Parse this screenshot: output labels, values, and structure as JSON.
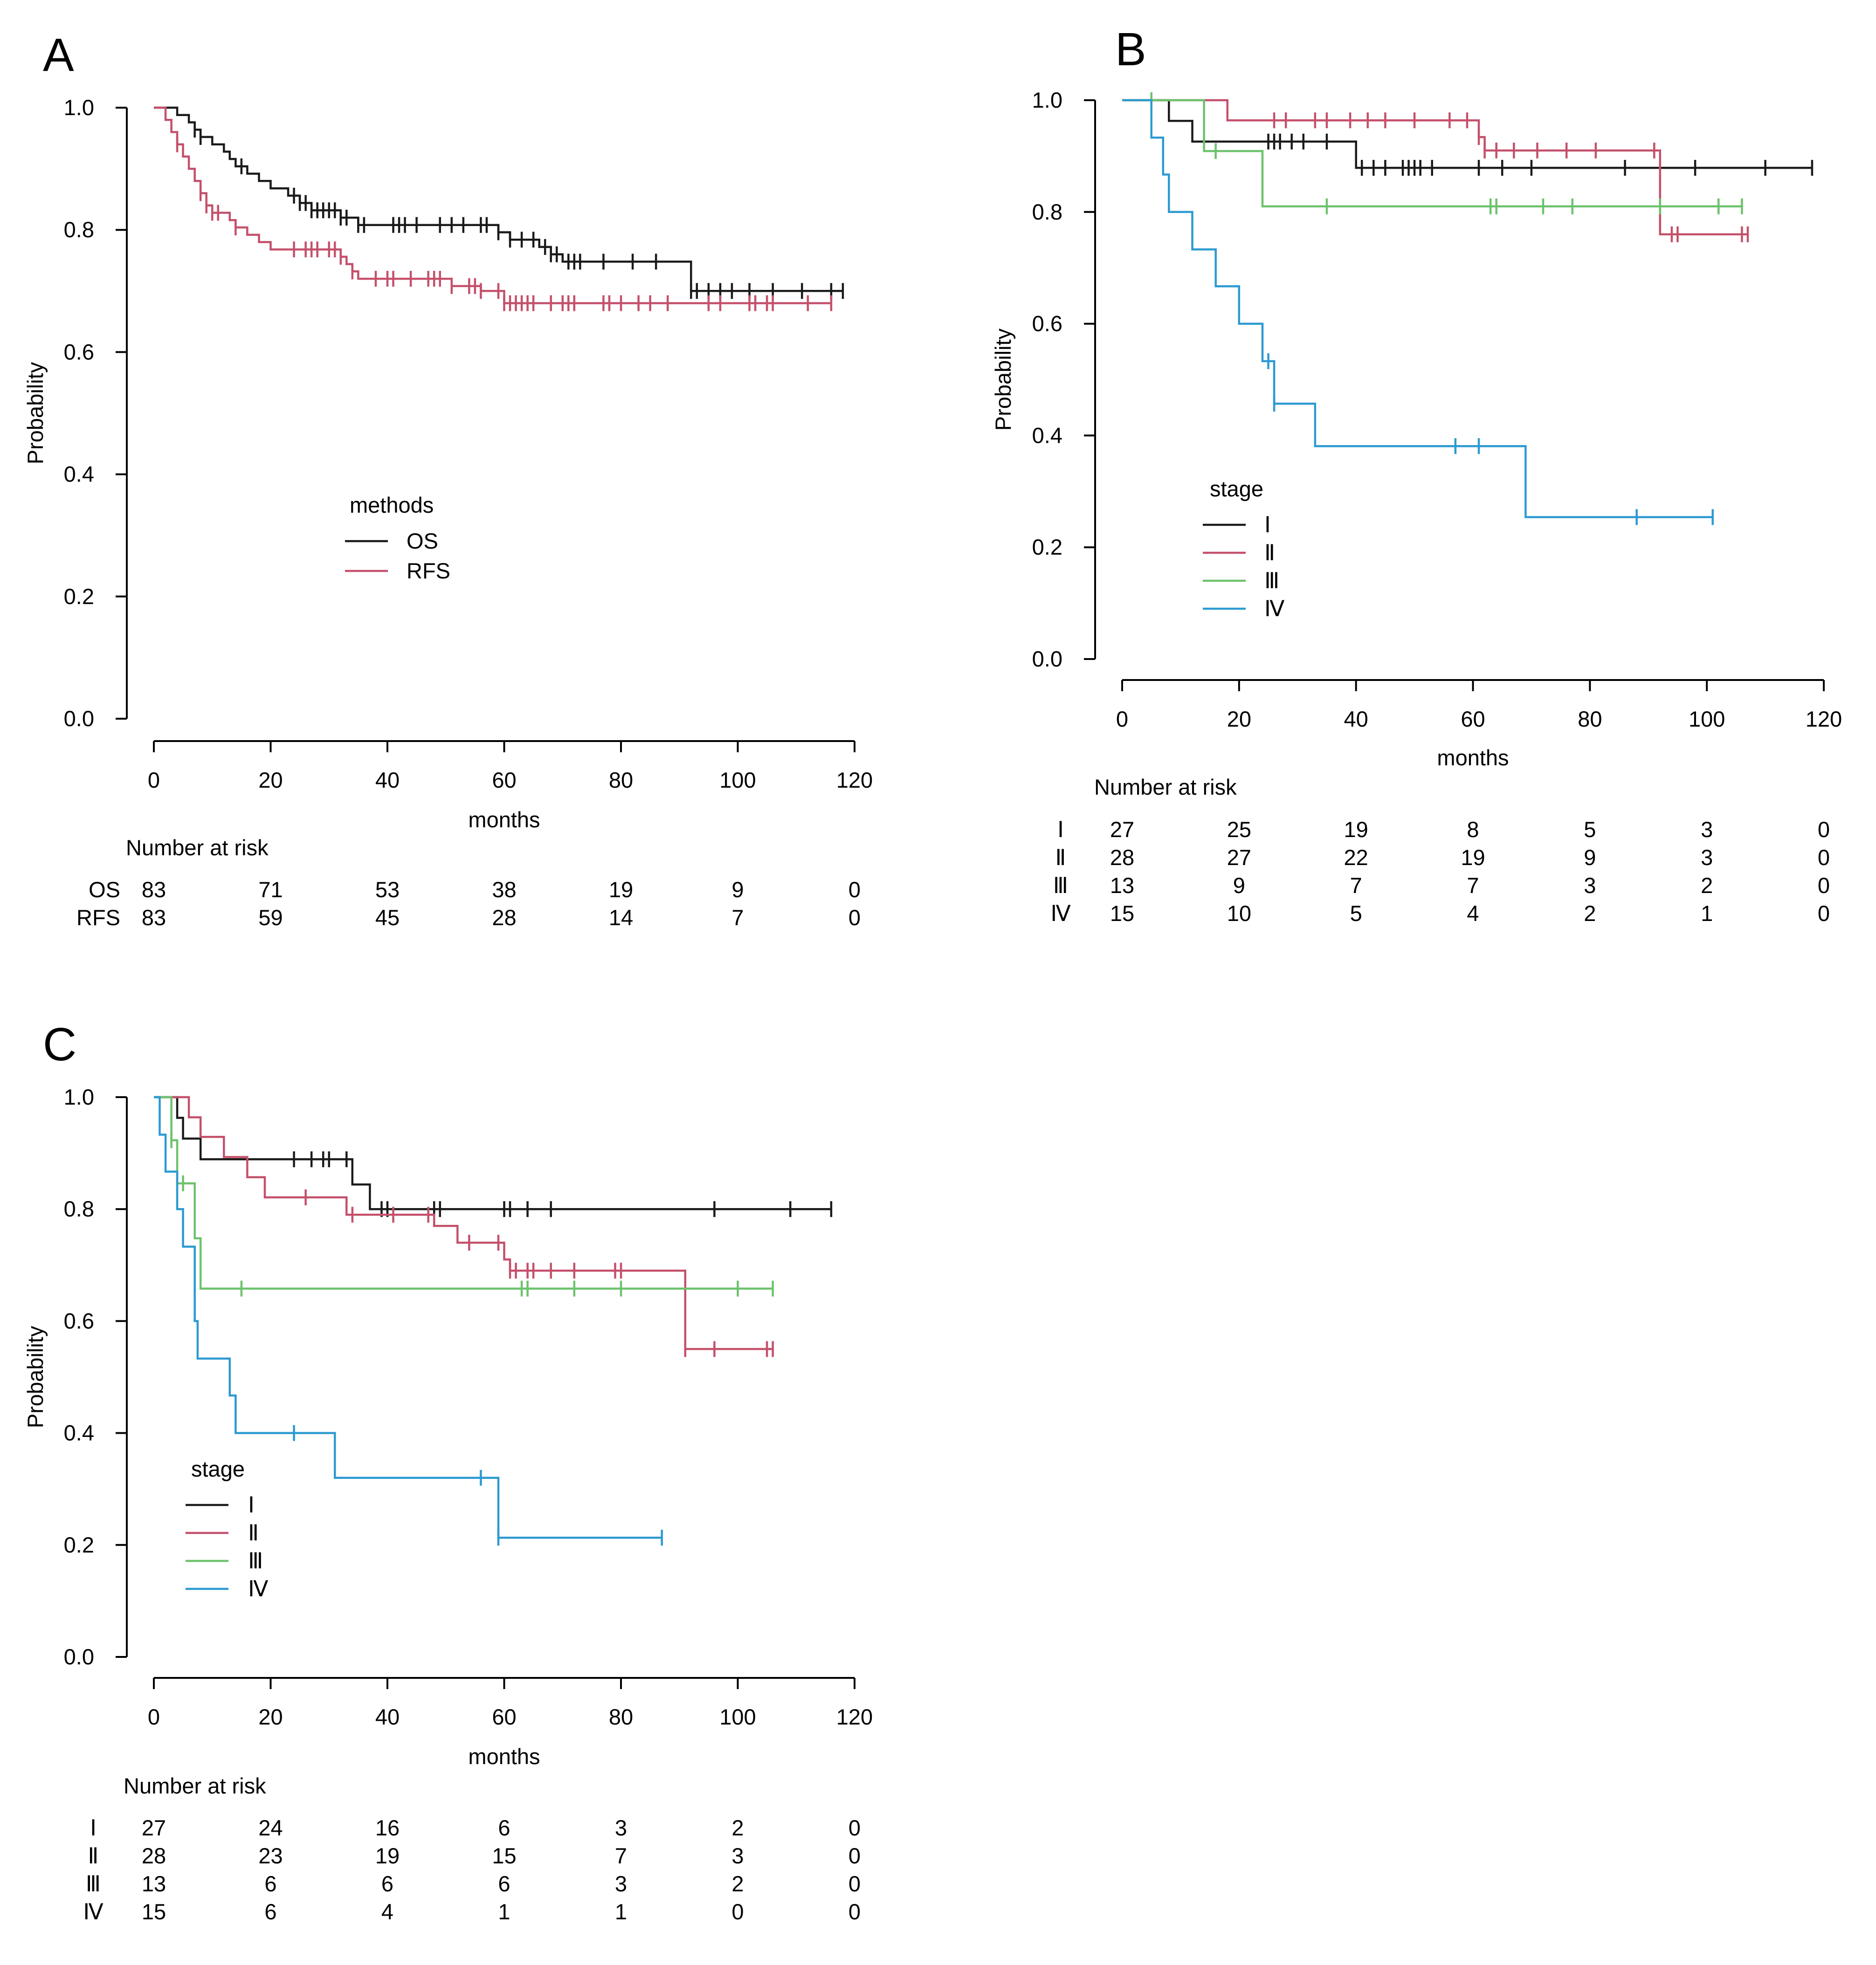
{
  "colors": {
    "black": "#1a1a1a",
    "red": "#c4506b",
    "green": "#6cc26c",
    "blue": "#2c9ad1"
  },
  "chart_data": [
    {
      "type": "line",
      "subtype": "kaplan-meier",
      "panel_label": "A",
      "xlabel": "months",
      "ylabel": "Probability",
      "xlim": [
        0,
        120
      ],
      "ylim": [
        0,
        1
      ],
      "xticks": [
        "0",
        "20",
        "40",
        "60",
        "80",
        "100",
        "120"
      ],
      "yticks": [
        "0.0",
        "0.2",
        "0.4",
        "0.6",
        "0.8",
        "1.0"
      ],
      "legend": {
        "title": "methods",
        "placement": "center"
      },
      "risk_table": {
        "title": "Number at risk",
        "rows": [
          {
            "label": "OS",
            "values": [
              "83",
              "71",
              "53",
              "38",
              "19",
              "9",
              "0"
            ]
          },
          {
            "label": "RFS",
            "values": [
              "83",
              "59",
              "45",
              "28",
              "14",
              "7",
              "0"
            ]
          }
        ]
      },
      "series": [
        {
          "name": "OS",
          "color": "#1a1a1a",
          "steps": [
            [
              0,
              1.0
            ],
            [
              4,
              0.988
            ],
            [
              6,
              0.976
            ],
            [
              7,
              0.964
            ],
            [
              8,
              0.952
            ],
            [
              10,
              0.94
            ],
            [
              12,
              0.928
            ],
            [
              13,
              0.916
            ],
            [
              14,
              0.904
            ],
            [
              16,
              0.892
            ],
            [
              18,
              0.88
            ],
            [
              20,
              0.868
            ],
            [
              23,
              0.856
            ],
            [
              25,
              0.844
            ],
            [
              27,
              0.832
            ],
            [
              32,
              0.82
            ],
            [
              35,
              0.808
            ],
            [
              40,
              0.808
            ],
            [
              59,
              0.796
            ],
            [
              61,
              0.784
            ],
            [
              66,
              0.772
            ],
            [
              68,
              0.76
            ],
            [
              70,
              0.748
            ],
            [
              92,
              0.7
            ]
          ],
          "censor_x": [
            7,
            8,
            15,
            24,
            25,
            26,
            27,
            28,
            29,
            30,
            31,
            32,
            33,
            35,
            36,
            41,
            42,
            43,
            45,
            49,
            51,
            53,
            56,
            57,
            59,
            61,
            63,
            65,
            67,
            68,
            69,
            71,
            72,
            73,
            77,
            82,
            86,
            92,
            93,
            95,
            97,
            99,
            102,
            106,
            111,
            116,
            118
          ]
        },
        {
          "name": "RFS",
          "color": "#c4506b",
          "steps": [
            [
              0,
              1.0
            ],
            [
              2,
              0.98
            ],
            [
              3,
              0.96
            ],
            [
              4,
              0.94
            ],
            [
              5,
              0.92
            ],
            [
              6,
              0.9
            ],
            [
              7,
              0.88
            ],
            [
              8,
              0.86
            ],
            [
              9,
              0.84
            ],
            [
              10,
              0.828
            ],
            [
              13,
              0.816
            ],
            [
              14,
              0.804
            ],
            [
              16,
              0.792
            ],
            [
              18,
              0.78
            ],
            [
              20,
              0.768
            ],
            [
              32,
              0.756
            ],
            [
              33,
              0.744
            ],
            [
              34,
              0.732
            ],
            [
              35,
              0.72
            ],
            [
              46,
              0.72
            ],
            [
              51,
              0.708
            ],
            [
              56,
              0.7
            ],
            [
              60,
              0.68
            ]
          ],
          "censor_x": [
            4,
            8,
            9,
            10,
            11,
            14,
            24,
            26,
            27,
            28,
            30,
            31,
            32,
            34,
            38,
            40,
            41,
            44,
            47,
            48,
            49,
            51,
            54,
            55,
            56,
            59,
            60,
            61,
            62,
            63,
            64,
            65,
            68,
            70,
            71,
            72,
            77,
            78,
            80,
            83,
            85,
            88,
            95,
            97,
            102,
            103,
            105,
            106,
            112,
            116
          ]
        }
      ]
    },
    {
      "type": "line",
      "subtype": "kaplan-meier",
      "panel_label": "B",
      "xlabel": "months",
      "ylabel": "Probability",
      "xlim": [
        0,
        120
      ],
      "ylim": [
        0,
        1
      ],
      "xticks": [
        "0",
        "20",
        "40",
        "60",
        "80",
        "100",
        "120"
      ],
      "yticks": [
        "0.0",
        "0.2",
        "0.4",
        "0.6",
        "0.8",
        "1.0"
      ],
      "legend": {
        "title": "stage",
        "placement": "center-left"
      },
      "risk_table": {
        "title": "Number at risk",
        "rows": [
          {
            "label": "Ⅰ",
            "values": [
              "27",
              "25",
              "19",
              "8",
              "5",
              "3",
              "0"
            ]
          },
          {
            "label": "Ⅱ",
            "values": [
              "28",
              "27",
              "22",
              "19",
              "9",
              "3",
              "0"
            ]
          },
          {
            "label": "Ⅲ",
            "values": [
              "13",
              "9",
              "7",
              "7",
              "3",
              "2",
              "0"
            ]
          },
          {
            "label": "Ⅳ",
            "values": [
              "15",
              "10",
              "5",
              "4",
              "2",
              "1",
              "0"
            ]
          }
        ]
      },
      "series": [
        {
          "name": "Ⅰ",
          "color": "#1a1a1a",
          "steps": [
            [
              0,
              1.0
            ],
            [
              8,
              0.963
            ],
            [
              12,
              0.926
            ],
            [
              40,
              0.879
            ]
          ],
          "censor_x": [
            25,
            26,
            27,
            29,
            31,
            35,
            41,
            43,
            45,
            48,
            49,
            50,
            51,
            53,
            61,
            65,
            70,
            86,
            98,
            110,
            118
          ]
        },
        {
          "name": "Ⅱ",
          "color": "#c4506b",
          "steps": [
            [
              0,
              1.0
            ],
            [
              18,
              0.964
            ],
            [
              61,
              0.934
            ],
            [
              62,
              0.91
            ],
            [
              92,
              0.76
            ]
          ],
          "censor_x": [
            26,
            28,
            33,
            35,
            39,
            42,
            45,
            50,
            56,
            59,
            61,
            62,
            64,
            67,
            71,
            76,
            81,
            91,
            94,
            95,
            106,
            107
          ]
        },
        {
          "name": "Ⅲ",
          "color": "#6cc26c",
          "steps": [
            [
              0,
              1.0
            ],
            [
              14,
              0.909
            ],
            [
              24,
              0.81
            ]
          ],
          "censor_x": [
            5,
            16,
            35,
            63,
            64,
            72,
            77,
            92,
            102,
            106
          ]
        },
        {
          "name": "Ⅳ",
          "color": "#2c9ad1",
          "steps": [
            [
              0,
              1.0
            ],
            [
              5,
              0.933
            ],
            [
              7,
              0.867
            ],
            [
              8,
              0.8
            ],
            [
              12,
              0.733
            ],
            [
              16,
              0.667
            ],
            [
              20,
              0.6
            ],
            [
              24,
              0.533
            ],
            [
              26,
              0.457
            ],
            [
              33,
              0.381
            ],
            [
              69,
              0.254
            ]
          ],
          "censor_x": [
            25,
            26,
            57,
            61,
            88,
            101
          ]
        }
      ]
    },
    {
      "type": "line",
      "subtype": "kaplan-meier",
      "panel_label": "C",
      "xlabel": "months",
      "ylabel": "Probability",
      "xlim": [
        0,
        120
      ],
      "ylim": [
        0,
        1
      ],
      "xticks": [
        "0",
        "20",
        "40",
        "60",
        "80",
        "100",
        "120"
      ],
      "yticks": [
        "0.0",
        "0.2",
        "0.4",
        "0.6",
        "0.8",
        "1.0"
      ],
      "legend": {
        "title": "stage",
        "placement": "bottom-left"
      },
      "risk_table": {
        "title": "Number at risk",
        "rows": [
          {
            "label": "Ⅰ",
            "values": [
              "27",
              "24",
              "16",
              "6",
              "3",
              "2",
              "0"
            ]
          },
          {
            "label": "Ⅱ",
            "values": [
              "28",
              "23",
              "19",
              "15",
              "7",
              "3",
              "0"
            ]
          },
          {
            "label": "Ⅲ",
            "values": [
              "13",
              "6",
              "6",
              "6",
              "3",
              "2",
              "0"
            ]
          },
          {
            "label": "Ⅳ",
            "values": [
              "15",
              "6",
              "4",
              "1",
              "1",
              "0",
              "0"
            ]
          }
        ]
      },
      "series": [
        {
          "name": "Ⅰ",
          "color": "#1a1a1a",
          "steps": [
            [
              0,
              1.0
            ],
            [
              4,
              0.963
            ],
            [
              5,
              0.926
            ],
            [
              8,
              0.889
            ],
            [
              34,
              0.844
            ],
            [
              37,
              0.8
            ]
          ],
          "censor_x": [
            24,
            27,
            29,
            30,
            33,
            39,
            40,
            48,
            49,
            60,
            61,
            64,
            68,
            96,
            109,
            116
          ]
        },
        {
          "name": "Ⅱ",
          "color": "#c4506b",
          "steps": [
            [
              0,
              1.0
            ],
            [
              6,
              0.964
            ],
            [
              8,
              0.929
            ],
            [
              12,
              0.893
            ],
            [
              16,
              0.857
            ],
            [
              19,
              0.821
            ],
            [
              33,
              0.79
            ],
            [
              48,
              0.77
            ],
            [
              52,
              0.74
            ],
            [
              60,
              0.71
            ],
            [
              61,
              0.69
            ],
            [
              91,
              0.55
            ]
          ],
          "censor_x": [
            26,
            34,
            41,
            47,
            54,
            59,
            61,
            62,
            64,
            65,
            68,
            72,
            79,
            80,
            91,
            96,
            105,
            106
          ]
        },
        {
          "name": "Ⅲ",
          "color": "#6cc26c",
          "steps": [
            [
              0,
              1.0
            ],
            [
              3,
              0.923
            ],
            [
              4,
              0.846
            ],
            [
              7,
              0.748
            ],
            [
              8,
              0.658
            ]
          ],
          "censor_x": [
            3,
            5,
            15,
            63,
            64,
            72,
            80,
            100,
            106
          ]
        },
        {
          "name": "Ⅳ",
          "color": "#2c9ad1",
          "steps": [
            [
              0,
              1.0
            ],
            [
              1,
              0.933
            ],
            [
              2,
              0.867
            ],
            [
              4,
              0.8
            ],
            [
              5,
              0.733
            ],
            [
              7,
              0.6
            ],
            [
              7.5,
              0.533
            ],
            [
              13,
              0.467
            ],
            [
              14,
              0.4
            ],
            [
              31,
              0.32
            ],
            [
              59,
              0.213
            ]
          ],
          "censor_x": [
            24,
            56,
            59,
            87
          ]
        }
      ]
    }
  ]
}
